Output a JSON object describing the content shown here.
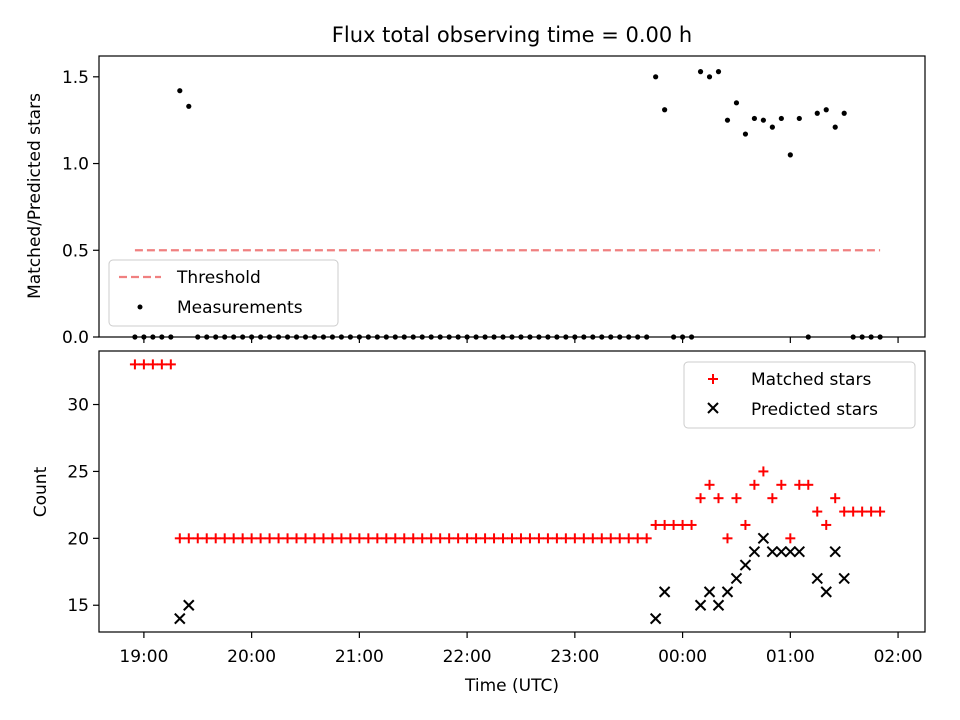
{
  "chart_data": [
    {
      "type": "scatter",
      "title": "Flux total observing time = 0.00 h",
      "xlabel": "",
      "ylabel": "Matched/Predicted stars",
      "x_unit": "time_utc",
      "xlim": [
        "18:35",
        "02:15"
      ],
      "ylim": [
        0,
        1.62
      ],
      "yticks": [
        0.0,
        0.5,
        1.0,
        1.5
      ],
      "ytick_labels": [
        "0.0",
        "0.5",
        "1.0",
        "1.5"
      ],
      "grid": false,
      "legend": {
        "position": "lower-left",
        "entries": [
          "Threshold",
          "Measurements"
        ]
      },
      "threshold": {
        "name": "Threshold",
        "value": 0.5,
        "x": [
          "18:55",
          "01:50"
        ],
        "color": "#f08080",
        "style": "dashed"
      },
      "series": [
        {
          "name": "Measurements",
          "color": "#000000",
          "marker": "dot",
          "points": [
            [
              "18:55",
              0
            ],
            [
              "19:00",
              0
            ],
            [
              "19:05",
              0
            ],
            [
              "19:10",
              0
            ],
            [
              "19:15",
              0
            ],
            [
              "19:20",
              1.42
            ],
            [
              "19:25",
              1.33
            ],
            [
              "19:30",
              0
            ],
            [
              "19:35",
              0
            ],
            [
              "19:40",
              0
            ],
            [
              "19:45",
              0
            ],
            [
              "19:50",
              0
            ],
            [
              "19:55",
              0
            ],
            [
              "20:00",
              0
            ],
            [
              "20:05",
              0
            ],
            [
              "20:10",
              0
            ],
            [
              "20:15",
              0
            ],
            [
              "20:20",
              0
            ],
            [
              "20:25",
              0
            ],
            [
              "20:30",
              0
            ],
            [
              "20:35",
              0
            ],
            [
              "20:40",
              0
            ],
            [
              "20:45",
              0
            ],
            [
              "20:50",
              0
            ],
            [
              "20:55",
              0
            ],
            [
              "21:00",
              0
            ],
            [
              "21:05",
              0
            ],
            [
              "21:10",
              0
            ],
            [
              "21:15",
              0
            ],
            [
              "21:20",
              0
            ],
            [
              "21:25",
              0
            ],
            [
              "21:30",
              0
            ],
            [
              "21:35",
              0
            ],
            [
              "21:40",
              0
            ],
            [
              "21:45",
              0
            ],
            [
              "21:50",
              0
            ],
            [
              "21:55",
              0
            ],
            [
              "22:00",
              0
            ],
            [
              "22:05",
              0
            ],
            [
              "22:10",
              0
            ],
            [
              "22:15",
              0
            ],
            [
              "22:20",
              0
            ],
            [
              "22:25",
              0
            ],
            [
              "22:30",
              0
            ],
            [
              "22:35",
              0
            ],
            [
              "22:40",
              0
            ],
            [
              "22:45",
              0
            ],
            [
              "22:50",
              0
            ],
            [
              "22:55",
              0
            ],
            [
              "23:00",
              0
            ],
            [
              "23:05",
              0
            ],
            [
              "23:10",
              0
            ],
            [
              "23:15",
              0
            ],
            [
              "23:20",
              0
            ],
            [
              "23:25",
              0
            ],
            [
              "23:30",
              0
            ],
            [
              "23:35",
              0
            ],
            [
              "23:40",
              0
            ],
            [
              "23:45",
              1.5
            ],
            [
              "23:50",
              1.31
            ],
            [
              "23:55",
              0
            ],
            [
              "00:00",
              0
            ],
            [
              "00:05",
              0
            ],
            [
              "00:10",
              1.53
            ],
            [
              "00:15",
              1.5
            ],
            [
              "00:20",
              1.53
            ],
            [
              "00:25",
              1.25
            ],
            [
              "00:30",
              1.35
            ],
            [
              "00:35",
              1.17
            ],
            [
              "00:40",
              1.26
            ],
            [
              "00:45",
              1.25
            ],
            [
              "00:50",
              1.21
            ],
            [
              "00:55",
              1.26
            ],
            [
              "01:00",
              1.05
            ],
            [
              "01:05",
              1.26
            ],
            [
              "01:10",
              0
            ],
            [
              "01:15",
              1.29
            ],
            [
              "01:20",
              1.31
            ],
            [
              "01:25",
              1.21
            ],
            [
              "01:30",
              1.29
            ],
            [
              "01:35",
              0
            ],
            [
              "01:40",
              0
            ],
            [
              "01:45",
              0
            ],
            [
              "01:50",
              0
            ]
          ]
        }
      ]
    },
    {
      "type": "scatter",
      "title": "",
      "xlabel": "Time (UTC)",
      "ylabel": "Count",
      "x_unit": "time_utc",
      "xlim": [
        "18:35",
        "02:15"
      ],
      "ylim": [
        13,
        34
      ],
      "yticks": [
        15,
        20,
        25,
        30
      ],
      "ytick_labels": [
        "15",
        "20",
        "25",
        "30"
      ],
      "xticks": [
        "19:00",
        "20:00",
        "21:00",
        "22:00",
        "23:00",
        "00:00",
        "01:00",
        "02:00"
      ],
      "grid": false,
      "legend": {
        "position": "top-right",
        "entries": [
          "Matched stars",
          "Predicted stars"
        ]
      },
      "series": [
        {
          "name": "Matched stars",
          "color": "#ff0000",
          "marker": "plus",
          "points": [
            [
              "18:55",
              33
            ],
            [
              "19:00",
              33
            ],
            [
              "19:05",
              33
            ],
            [
              "19:10",
              33
            ],
            [
              "19:15",
              33
            ],
            [
              "19:20",
              20
            ],
            [
              "19:25",
              20
            ],
            [
              "19:30",
              20
            ],
            [
              "19:35",
              20
            ],
            [
              "19:40",
              20
            ],
            [
              "19:45",
              20
            ],
            [
              "19:50",
              20
            ],
            [
              "19:55",
              20
            ],
            [
              "20:00",
              20
            ],
            [
              "20:05",
              20
            ],
            [
              "20:10",
              20
            ],
            [
              "20:15",
              20
            ],
            [
              "20:20",
              20
            ],
            [
              "20:25",
              20
            ],
            [
              "20:30",
              20
            ],
            [
              "20:35",
              20
            ],
            [
              "20:40",
              20
            ],
            [
              "20:45",
              20
            ],
            [
              "20:50",
              20
            ],
            [
              "20:55",
              20
            ],
            [
              "21:00",
              20
            ],
            [
              "21:05",
              20
            ],
            [
              "21:10",
              20
            ],
            [
              "21:15",
              20
            ],
            [
              "21:20",
              20
            ],
            [
              "21:25",
              20
            ],
            [
              "21:30",
              20
            ],
            [
              "21:35",
              20
            ],
            [
              "21:40",
              20
            ],
            [
              "21:45",
              20
            ],
            [
              "21:50",
              20
            ],
            [
              "21:55",
              20
            ],
            [
              "22:00",
              20
            ],
            [
              "22:05",
              20
            ],
            [
              "22:10",
              20
            ],
            [
              "22:15",
              20
            ],
            [
              "22:20",
              20
            ],
            [
              "22:25",
              20
            ],
            [
              "22:30",
              20
            ],
            [
              "22:35",
              20
            ],
            [
              "22:40",
              20
            ],
            [
              "22:45",
              20
            ],
            [
              "22:50",
              20
            ],
            [
              "22:55",
              20
            ],
            [
              "23:00",
              20
            ],
            [
              "23:05",
              20
            ],
            [
              "23:10",
              20
            ],
            [
              "23:15",
              20
            ],
            [
              "23:20",
              20
            ],
            [
              "23:25",
              20
            ],
            [
              "23:30",
              20
            ],
            [
              "23:35",
              20
            ],
            [
              "23:40",
              20
            ],
            [
              "23:45",
              21
            ],
            [
              "23:50",
              21
            ],
            [
              "23:55",
              21
            ],
            [
              "00:00",
              21
            ],
            [
              "00:05",
              21
            ],
            [
              "00:10",
              23
            ],
            [
              "00:15",
              24
            ],
            [
              "00:20",
              23
            ],
            [
              "00:25",
              20
            ],
            [
              "00:30",
              23
            ],
            [
              "00:35",
              21
            ],
            [
              "00:40",
              24
            ],
            [
              "00:45",
              25
            ],
            [
              "00:50",
              23
            ],
            [
              "00:55",
              24
            ],
            [
              "01:00",
              20
            ],
            [
              "01:05",
              24
            ],
            [
              "01:10",
              24
            ],
            [
              "01:15",
              22
            ],
            [
              "01:20",
              21
            ],
            [
              "01:25",
              23
            ],
            [
              "01:30",
              22
            ],
            [
              "01:35",
              22
            ],
            [
              "01:40",
              22
            ],
            [
              "01:45",
              22
            ],
            [
              "01:50",
              22
            ]
          ]
        },
        {
          "name": "Predicted stars",
          "color": "#000000",
          "marker": "x",
          "points": [
            [
              "19:20",
              14
            ],
            [
              "19:25",
              15
            ],
            [
              "23:45",
              14
            ],
            [
              "23:50",
              16
            ],
            [
              "00:10",
              15
            ],
            [
              "00:15",
              16
            ],
            [
              "00:20",
              15
            ],
            [
              "00:25",
              16
            ],
            [
              "00:30",
              17
            ],
            [
              "00:35",
              18
            ],
            [
              "00:40",
              19
            ],
            [
              "00:45",
              20
            ],
            [
              "00:50",
              19
            ],
            [
              "00:55",
              19
            ],
            [
              "01:00",
              19
            ],
            [
              "01:05",
              19
            ],
            [
              "01:15",
              17
            ],
            [
              "01:20",
              16
            ],
            [
              "01:25",
              19
            ],
            [
              "01:30",
              17
            ]
          ]
        }
      ]
    }
  ]
}
